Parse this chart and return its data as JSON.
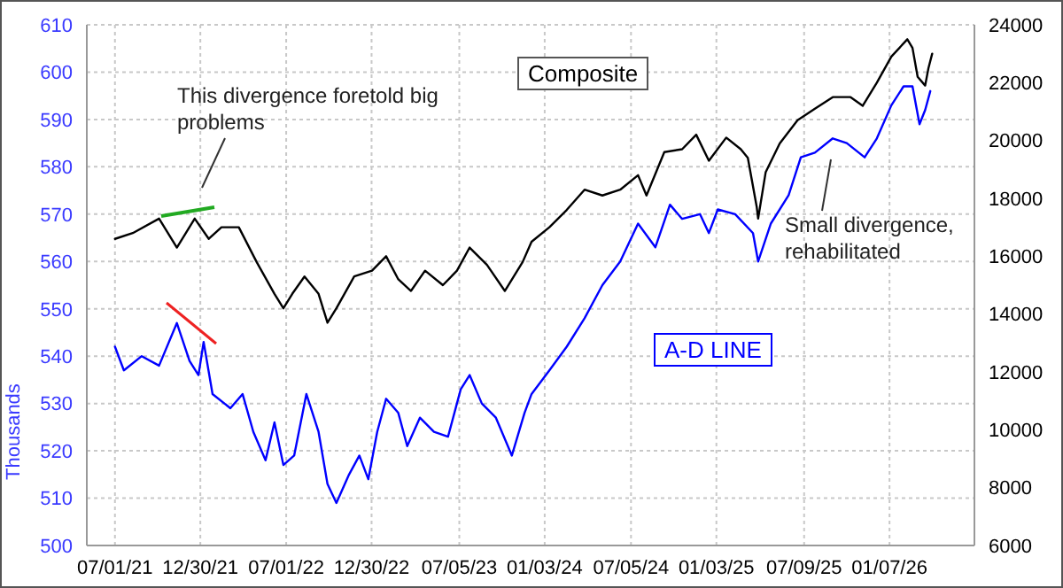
{
  "chart_data": {
    "type": "line",
    "ylabel": "Thousands",
    "annotations": [
      "This divergence foretold big problems",
      "Small divergence, rehabilitated"
    ],
    "xlim": [
      "2021-05-02",
      "2026-07-07"
    ],
    "xticks": [
      {
        "value": "2021-07-01",
        "label": "07/01/21"
      },
      {
        "value": "2021-12-30",
        "label": "12/30/21"
      },
      {
        "value": "2022-07-01",
        "label": "07/01/22"
      },
      {
        "value": "2022-12-30",
        "label": "12/30/22"
      },
      {
        "value": "2023-07-05",
        "label": "07/05/23"
      },
      {
        "value": "2024-01-03",
        "label": "01/03/24"
      },
      {
        "value": "2024-07-05",
        "label": "07/05/24"
      },
      {
        "value": "2025-01-03",
        "label": "01/03/25"
      },
      {
        "value": "2025-07-09",
        "label": "07/09/25"
      },
      {
        "value": "2026-01-07",
        "label": "01/07/26"
      }
    ],
    "ylim": [
      500,
      610
    ],
    "yticks": [
      500,
      510,
      520,
      530,
      540,
      550,
      560,
      570,
      580,
      590,
      600,
      610
    ],
    "y2lim": [
      6000,
      24000
    ],
    "y2ticks": [
      6000,
      8000,
      10000,
      12000,
      14000,
      16000,
      18000,
      20000,
      22000,
      24000
    ],
    "grid": true,
    "legend": false,
    "series": [
      {
        "name": "Composite",
        "color": "#000000",
        "axis": "y2",
        "x": [
          "2021-07-01",
          "2021-08-08",
          "2021-10-03",
          "2021-11-10",
          "2021-12-18",
          "2022-01-17",
          "2022-02-13",
          "2022-03-22",
          "2022-04-29",
          "2022-06-06",
          "2022-06-25",
          "2022-07-14",
          "2022-08-09",
          "2022-09-08",
          "2022-09-27",
          "2022-10-16",
          "2022-11-23",
          "2022-12-31",
          "2023-01-30",
          "2023-02-25",
          "2023-03-24",
          "2023-04-23",
          "2023-05-31",
          "2023-06-30",
          "2023-07-27",
          "2023-09-02",
          "2023-10-10",
          "2023-11-17",
          "2023-12-06",
          "2024-01-13",
          "2024-02-19",
          "2024-03-28",
          "2024-05-05",
          "2024-06-12",
          "2024-07-20",
          "2024-08-07",
          "2024-09-14",
          "2024-10-22",
          "2024-11-21",
          "2024-12-18",
          "2025-01-24",
          "2025-02-24",
          "2025-03-11",
          "2025-03-30",
          "2025-04-02",
          "2025-04-18",
          "2025-05-18",
          "2025-06-25",
          "2025-08-01",
          "2025-09-08",
          "2025-10-16",
          "2025-11-11",
          "2025-12-11",
          "2026-01-11",
          "2026-02-14",
          "2026-02-25",
          "2026-03-08",
          "2026-03-24",
          "2026-03-31",
          "2026-04-08"
        ],
        "values": [
          16600,
          16800,
          17300,
          16300,
          17300,
          16600,
          17000,
          17000,
          15800,
          14700,
          14200,
          14700,
          15300,
          14700,
          13700,
          14200,
          15300,
          15500,
          16000,
          15200,
          14800,
          15500,
          15000,
          15500,
          16300,
          15700,
          14800,
          15800,
          16500,
          17000,
          17600,
          18300,
          18100,
          18300,
          18800,
          18100,
          19600,
          19700,
          20200,
          19300,
          20100,
          19700,
          19400,
          17700,
          17300,
          18900,
          19900,
          20700,
          21100,
          21500,
          21500,
          21200,
          22000,
          22900,
          23500,
          23200,
          22200,
          21900,
          22500,
          23000
        ]
      },
      {
        "name": "A-D LINE",
        "color": "#0000ff",
        "axis": "y",
        "x": [
          "2021-07-01",
          "2021-07-20",
          "2021-08-27",
          "2021-10-03",
          "2021-11-10",
          "2021-12-07",
          "2021-12-26",
          "2022-01-06",
          "2022-01-25",
          "2022-03-04",
          "2022-03-30",
          "2022-04-22",
          "2022-05-18",
          "2022-06-06",
          "2022-06-25",
          "2022-07-18",
          "2022-08-13",
          "2022-09-08",
          "2022-09-27",
          "2022-10-16",
          "2022-11-12",
          "2022-12-04",
          "2022-12-23",
          "2023-01-11",
          "2023-01-30",
          "2023-02-25",
          "2023-03-16",
          "2023-04-12",
          "2023-05-12",
          "2023-06-11",
          "2023-07-08",
          "2023-07-27",
          "2023-08-22",
          "2023-09-21",
          "2023-10-25",
          "2023-11-21",
          "2023-12-06",
          "2024-01-13",
          "2024-02-19",
          "2024-03-28",
          "2024-05-05",
          "2024-06-12",
          "2024-07-20",
          "2024-08-26",
          "2024-09-26",
          "2024-10-22",
          "2024-11-29",
          "2024-12-18",
          "2025-01-06",
          "2025-02-12",
          "2025-03-22",
          "2025-04-02",
          "2025-04-29",
          "2025-06-06",
          "2025-07-02",
          "2025-08-01",
          "2025-09-08",
          "2025-10-08",
          "2025-11-15",
          "2025-12-11",
          "2026-01-11",
          "2026-02-06",
          "2026-02-25",
          "2026-03-12",
          "2026-03-24",
          "2026-04-04"
        ],
        "values": [
          542,
          537,
          540,
          538,
          547,
          539,
          536,
          543,
          532,
          529,
          532,
          524,
          518,
          526,
          517,
          519,
          532,
          524,
          513,
          509,
          515,
          519,
          514,
          524,
          531,
          528,
          521,
          527,
          524,
          523,
          533,
          536,
          530,
          527,
          519,
          528,
          532,
          537,
          542,
          548,
          555,
          560,
          568,
          563,
          572,
          569,
          570,
          566,
          571,
          570,
          566,
          560,
          568,
          574,
          582,
          583,
          586,
          585,
          582,
          586,
          593,
          597,
          597,
          589,
          592,
          596
        ]
      }
    ]
  }
}
